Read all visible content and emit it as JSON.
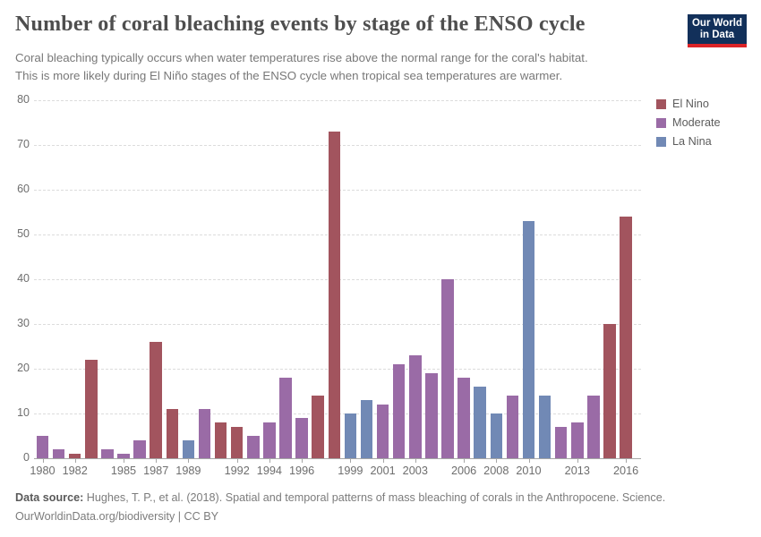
{
  "header": {
    "title": "Number of coral bleaching events by stage of the ENSO cycle",
    "subtitle_line1": "Coral bleaching typically occurs when water temperatures rise above the normal range for the coral's habitat.",
    "subtitle_line2": "This is more likely during El Niño stages of the ENSO cycle when tropical sea temperatures are warmer.",
    "logo": {
      "line1": "Our World",
      "line2": "in Data",
      "bg_color": "#12305a",
      "stripe_color": "#dc2327"
    }
  },
  "legend": {
    "items": [
      {
        "label": "El Nino",
        "color": "#a2545e"
      },
      {
        "label": "Moderate",
        "color": "#9a6ba6"
      },
      {
        "label": "La Nina",
        "color": "#7189b5"
      }
    ]
  },
  "chart_data": {
    "type": "bar",
    "title": "Number of coral bleaching events by stage of the ENSO cycle",
    "xlabel": "",
    "ylabel": "",
    "ylim": [
      0,
      80
    ],
    "grid": "dashed-horizontal",
    "legend_position": "top-right",
    "y_ticks": [
      0,
      10,
      20,
      30,
      40,
      50,
      60,
      70,
      80
    ],
    "x_tick_years": [
      1980,
      1982,
      1985,
      1987,
      1989,
      1992,
      1994,
      1996,
      1999,
      2001,
      2003,
      2006,
      2008,
      2010,
      2013,
      2016
    ],
    "stage_colors": {
      "El Nino": "#a2545e",
      "Moderate": "#9a6ba6",
      "La Nina": "#7189b5"
    },
    "bars": [
      {
        "year": 1980,
        "stage": "Moderate",
        "value": 5
      },
      {
        "year": 1981,
        "stage": "Moderate",
        "value": 2
      },
      {
        "year": 1982,
        "stage": "El Nino",
        "value": 1
      },
      {
        "year": 1983,
        "stage": "El Nino",
        "value": 22
      },
      {
        "year": 1984,
        "stage": "Moderate",
        "value": 2
      },
      {
        "year": 1985,
        "stage": "Moderate",
        "value": 1
      },
      {
        "year": 1986,
        "stage": "Moderate",
        "value": 4
      },
      {
        "year": 1987,
        "stage": "El Nino",
        "value": 26
      },
      {
        "year": 1988,
        "stage": "El Nino",
        "value": 11
      },
      {
        "year": 1989,
        "stage": "La Nina",
        "value": 4
      },
      {
        "year": 1990,
        "stage": "Moderate",
        "value": 11
      },
      {
        "year": 1991,
        "stage": "El Nino",
        "value": 8
      },
      {
        "year": 1992,
        "stage": "El Nino",
        "value": 7
      },
      {
        "year": 1993,
        "stage": "Moderate",
        "value": 5
      },
      {
        "year": 1994,
        "stage": "Moderate",
        "value": 8
      },
      {
        "year": 1995,
        "stage": "Moderate",
        "value": 18
      },
      {
        "year": 1996,
        "stage": "Moderate",
        "value": 9
      },
      {
        "year": 1997,
        "stage": "El Nino",
        "value": 14
      },
      {
        "year": 1998,
        "stage": "El Nino",
        "value": 73
      },
      {
        "year": 1999,
        "stage": "La Nina",
        "value": 10
      },
      {
        "year": 2000,
        "stage": "La Nina",
        "value": 13
      },
      {
        "year": 2001,
        "stage": "Moderate",
        "value": 12
      },
      {
        "year": 2002,
        "stage": "Moderate",
        "value": 21
      },
      {
        "year": 2003,
        "stage": "Moderate",
        "value": 23
      },
      {
        "year": 2004,
        "stage": "Moderate",
        "value": 19
      },
      {
        "year": 2005,
        "stage": "Moderate",
        "value": 40
      },
      {
        "year": 2006,
        "stage": "Moderate",
        "value": 18
      },
      {
        "year": 2007,
        "stage": "La Nina",
        "value": 16
      },
      {
        "year": 2008,
        "stage": "La Nina",
        "value": 10
      },
      {
        "year": 2009,
        "stage": "Moderate",
        "value": 14
      },
      {
        "year": 2010,
        "stage": "La Nina",
        "value": 53
      },
      {
        "year": 2011,
        "stage": "La Nina",
        "value": 14
      },
      {
        "year": 2012,
        "stage": "Moderate",
        "value": 7
      },
      {
        "year": 2013,
        "stage": "Moderate",
        "value": 8
      },
      {
        "year": 2014,
        "stage": "Moderate",
        "value": 14
      },
      {
        "year": 2015,
        "stage": "El Nino",
        "value": 30
      },
      {
        "year": 2016,
        "stage": "El Nino",
        "value": 54
      }
    ]
  },
  "footer": {
    "source_label": "Data source:",
    "source_text": " Hughes, T. P., et al. (2018). Spatial and temporal patterns of mass bleaching of corals in the Anthropocene. Science.",
    "link_line": "OurWorldinData.org/biodiversity | CC BY"
  }
}
